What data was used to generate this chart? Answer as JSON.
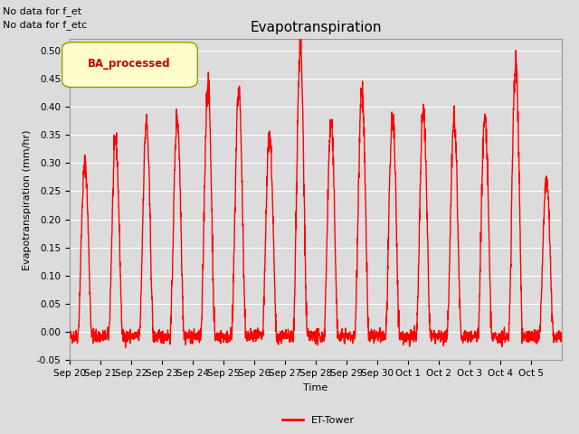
{
  "title": "Evapotranspiration",
  "xlabel": "Time",
  "ylabel": "Evapotranspiration (mm/hr)",
  "ylim": [
    -0.05,
    0.52
  ],
  "line_color": "red",
  "line_width": 1.0,
  "background_color": "#dcdcdc",
  "plot_bg_color": "#dcdcdc",
  "annotation_text1": "No data for f_et",
  "annotation_text2": "No data for f_etc",
  "legend_label": "BA_processed",
  "bottom_legend_label": "ET-Tower",
  "legend_box_color": "#ffffcc",
  "legend_text_color": "#cc0000",
  "note_fontsize": 8,
  "title_fontsize": 11,
  "label_fontsize": 8,
  "tick_fontsize": 7.5,
  "n_days": 16,
  "points_per_day": 144,
  "daily_peaks": [
    0.3,
    0.34,
    0.37,
    0.38,
    0.44,
    0.43,
    0.35,
    0.5,
    0.37,
    0.43,
    0.38,
    0.39,
    0.38,
    0.38,
    0.48,
    0.27
  ],
  "xtick_labels": [
    "Sep 20",
    "Sep 21",
    "Sep 22",
    "Sep 23",
    "Sep 24",
    "Sep 25",
    "Sep 26",
    "Sep 27",
    "Sep 28",
    "Sep 29",
    "Sep 30",
    "Oct 1",
    "Oct 2",
    "Oct 3",
    "Oct 4",
    "Oct 5"
  ],
  "ytick_values": [
    -0.05,
    0.0,
    0.05,
    0.1,
    0.15,
    0.2,
    0.25,
    0.3,
    0.35,
    0.4,
    0.45,
    0.5
  ]
}
